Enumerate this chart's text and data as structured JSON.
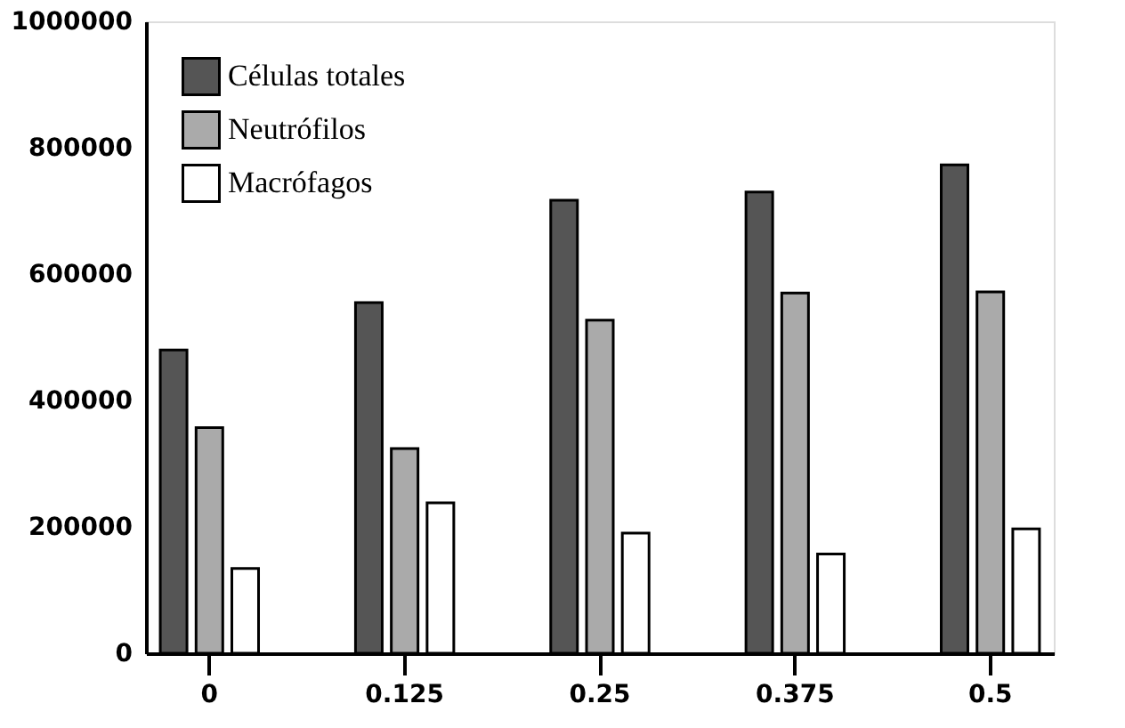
{
  "chart_data": {
    "type": "bar",
    "categories": [
      "0",
      "0.125",
      "0.25",
      "0.375",
      "0.5"
    ],
    "series": [
      {
        "name": "Células totales",
        "color": "#555555",
        "values": [
          480000,
          555000,
          717000,
          730000,
          773000
        ]
      },
      {
        "name": "Neutrófilos",
        "color": "#aaaaaa",
        "values": [
          357000,
          324000,
          527000,
          570000,
          572000
        ]
      },
      {
        "name": "Macrófagos",
        "color": "#ffffff",
        "values": [
          134000,
          238000,
          190000,
          157000,
          197000
        ]
      }
    ],
    "ylim": [
      0,
      1000000
    ],
    "yticks": [
      0,
      200000,
      400000,
      600000,
      800000,
      1000000
    ],
    "grid": false,
    "legend": "top left"
  }
}
